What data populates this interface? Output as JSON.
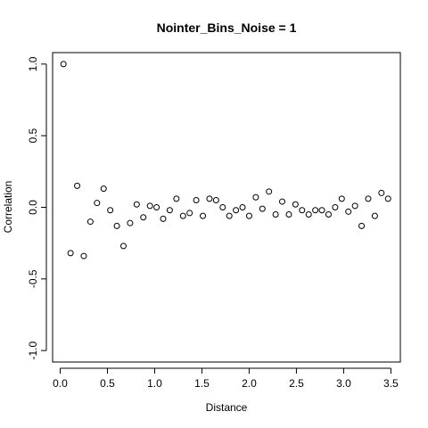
{
  "chart_data": {
    "type": "scatter",
    "title": "Nointer_Bins_Noise = 1",
    "xlabel": "Distance",
    "ylabel": "Correlation",
    "xlim": [
      -0.08,
      3.6
    ],
    "ylim": [
      -1.08,
      1.08
    ],
    "xticks": [
      0.0,
      0.5,
      1.0,
      1.5,
      2.0,
      2.5,
      3.0,
      3.5
    ],
    "xtick_labels": [
      "0.0",
      "0.5",
      "1.0",
      "1.5",
      "2.0",
      "2.5",
      "3.0",
      "3.5"
    ],
    "yticks": [
      -1.0,
      -0.5,
      0.0,
      0.5,
      1.0
    ],
    "ytick_labels": [
      "-1.0",
      "-0.5",
      "0.0",
      "0.5",
      "1.0"
    ],
    "grid": false,
    "x": [
      0.035,
      0.11,
      0.18,
      0.25,
      0.32,
      0.39,
      0.46,
      0.53,
      0.6,
      0.67,
      0.74,
      0.81,
      0.88,
      0.95,
      1.02,
      1.09,
      1.16,
      1.23,
      1.3,
      1.37,
      1.44,
      1.51,
      1.58,
      1.65,
      1.72,
      1.79,
      1.86,
      1.93,
      2.0,
      2.07,
      2.14,
      2.21,
      2.28,
      2.35,
      2.42,
      2.49,
      2.56,
      2.63,
      2.7,
      2.77,
      2.84,
      2.91,
      2.98,
      3.05,
      3.12,
      3.19,
      3.26,
      3.33,
      3.4,
      3.47
    ],
    "y": [
      1.0,
      -0.32,
      0.15,
      -0.34,
      -0.1,
      0.03,
      0.13,
      -0.02,
      -0.13,
      -0.27,
      -0.11,
      0.02,
      -0.07,
      0.01,
      0.0,
      -0.08,
      -0.02,
      0.06,
      -0.06,
      -0.04,
      0.05,
      -0.06,
      0.06,
      0.05,
      0.0,
      -0.06,
      -0.02,
      0.0,
      -0.06,
      0.07,
      -0.01,
      0.11,
      -0.05,
      0.04,
      -0.05,
      0.02,
      -0.02,
      -0.05,
      -0.02,
      -0.02,
      -0.05,
      0.0,
      0.06,
      -0.03,
      0.01,
      -0.13,
      0.06,
      -0.06,
      0.1,
      0.06
    ]
  }
}
